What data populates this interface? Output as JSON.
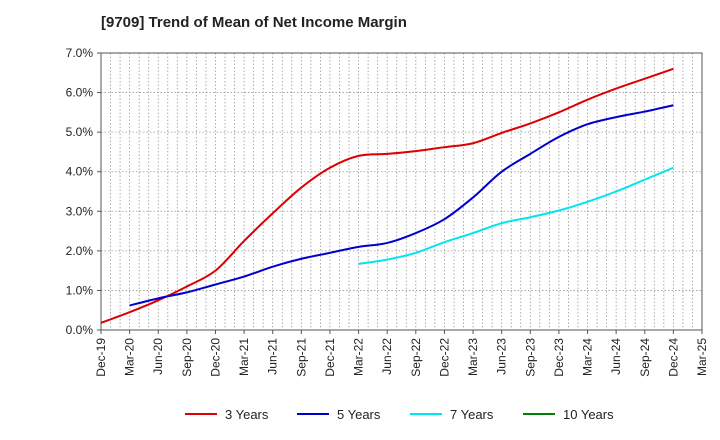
{
  "title": "[9709]  Trend of Mean of Net Income Margin",
  "chart_data": {
    "type": "line",
    "title": "[9709]  Trend of Mean of Net Income Margin",
    "xlabel": "",
    "ylabel": "",
    "ylim": [
      0,
      7
    ],
    "grid": true,
    "legend_position": "bottom",
    "x": [
      "Dec-19",
      "Mar-20",
      "Jun-20",
      "Sep-20",
      "Dec-20",
      "Mar-21",
      "Jun-21",
      "Sep-21",
      "Dec-21",
      "Mar-22",
      "Jun-22",
      "Sep-22",
      "Dec-22",
      "Mar-23",
      "Jun-23",
      "Sep-23",
      "Dec-23",
      "Mar-24",
      "Jun-24",
      "Sep-24",
      "Dec-24",
      "Mar-25"
    ],
    "y_ticks": [
      "0.0%",
      "1.0%",
      "2.0%",
      "3.0%",
      "4.0%",
      "5.0%",
      "6.0%",
      "7.0%"
    ],
    "y_tick_values": [
      0,
      1,
      2,
      3,
      4,
      5,
      6,
      7
    ],
    "series": [
      {
        "name": "3 Years",
        "color": "#dd0000",
        "values": [
          0.18,
          0.45,
          0.75,
          1.1,
          1.5,
          2.25,
          2.95,
          3.6,
          4.1,
          4.4,
          4.45,
          4.52,
          4.62,
          4.72,
          4.98,
          5.22,
          5.5,
          5.82,
          6.1,
          6.35,
          6.6,
          null
        ]
      },
      {
        "name": "5 Years",
        "color": "#0000cc",
        "values": [
          null,
          0.62,
          0.8,
          0.95,
          1.15,
          1.35,
          1.6,
          1.8,
          1.95,
          2.1,
          2.2,
          2.45,
          2.8,
          3.35,
          4.0,
          4.45,
          4.88,
          5.2,
          5.38,
          5.52,
          5.68,
          null
        ]
      },
      {
        "name": "7 Years",
        "color": "#00e5ee",
        "values": [
          null,
          null,
          null,
          null,
          null,
          null,
          null,
          null,
          null,
          1.67,
          1.78,
          1.95,
          2.22,
          2.45,
          2.7,
          2.85,
          3.02,
          3.24,
          3.5,
          3.8,
          4.1,
          null
        ]
      },
      {
        "name": "10 Years",
        "color": "#008000",
        "values": [
          null,
          null,
          null,
          null,
          null,
          null,
          null,
          null,
          null,
          null,
          null,
          null,
          null,
          null,
          null,
          null,
          null,
          null,
          null,
          null,
          null,
          null
        ]
      }
    ]
  }
}
